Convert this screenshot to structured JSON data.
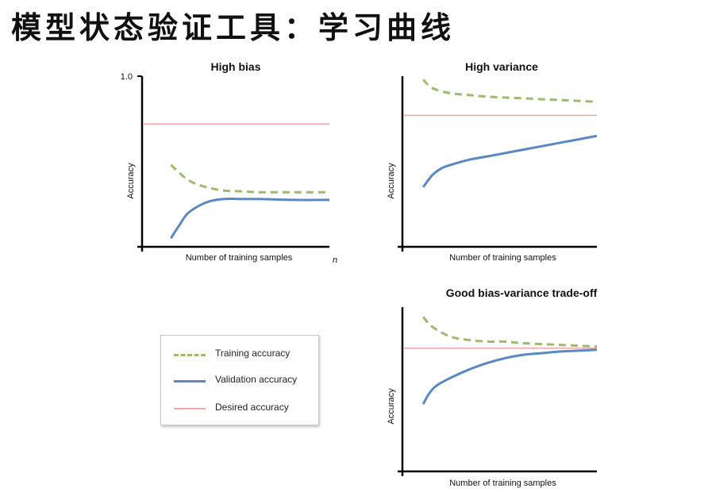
{
  "page": {
    "title": "模型状态验证工具：学习曲线"
  },
  "legend": {
    "items": [
      {
        "label": "Training accuracy",
        "style": "dashed",
        "color": "#9dbb6c"
      },
      {
        "label": "Validation accuracy",
        "style": "solid",
        "color": "#5b88c2"
      },
      {
        "label": "Desired accuracy",
        "style": "solid",
        "color": "#f1a7a7"
      }
    ]
  },
  "chart_data": [
    {
      "type": "line",
      "title": "High bias",
      "xlabel": "Number of training samples",
      "ylabel": "Accuracy",
      "y_tick_label": "1.0",
      "x_end_label": "n",
      "ylim": [
        0,
        1.0
      ],
      "xlim": [
        0,
        1
      ],
      "grid": false,
      "series": [
        {
          "name": "Desired accuracy",
          "style": "solid",
          "color": "#f1a7a7",
          "x": [
            0.0,
            1.0
          ],
          "values": [
            0.72,
            0.72
          ]
        },
        {
          "name": "Training accuracy",
          "style": "dashed",
          "color": "#9dbb6c",
          "x": [
            0.1,
            0.2,
            0.3,
            0.4,
            0.5,
            0.6,
            0.8,
            1.0
          ],
          "values": [
            0.48,
            0.39,
            0.35,
            0.33,
            0.325,
            0.32,
            0.32,
            0.32
          ]
        },
        {
          "name": "Validation accuracy",
          "style": "solid",
          "color": "#5b88c2",
          "x": [
            0.1,
            0.15,
            0.2,
            0.3,
            0.4,
            0.5,
            0.6,
            0.8,
            1.0
          ],
          "values": [
            0.05,
            0.13,
            0.2,
            0.26,
            0.28,
            0.28,
            0.28,
            0.275,
            0.275
          ]
        }
      ]
    },
    {
      "type": "line",
      "title": "High variance",
      "xlabel": "Number of training samples",
      "ylabel": "Accuracy",
      "ylim": [
        0,
        1.0
      ],
      "xlim": [
        0,
        1
      ],
      "grid": false,
      "series": [
        {
          "name": "Desired accuracy",
          "style": "solid",
          "color": "#f1a7a7",
          "x": [
            0.0,
            1.0
          ],
          "values": [
            0.77,
            0.77
          ]
        },
        {
          "name": "Training accuracy",
          "style": "dashed",
          "color": "#9dbb6c",
          "x": [
            0.05,
            0.1,
            0.2,
            0.3,
            0.4,
            0.6,
            0.8,
            1.0
          ],
          "values": [
            0.98,
            0.93,
            0.9,
            0.89,
            0.88,
            0.87,
            0.86,
            0.85
          ]
        },
        {
          "name": "Validation accuracy",
          "style": "solid",
          "color": "#5b88c2",
          "x": [
            0.05,
            0.1,
            0.15,
            0.2,
            0.3,
            0.4,
            0.5,
            0.6,
            0.7,
            0.8,
            0.9,
            1.0
          ],
          "values": [
            0.35,
            0.42,
            0.46,
            0.48,
            0.51,
            0.53,
            0.55,
            0.57,
            0.59,
            0.61,
            0.63,
            0.65
          ]
        }
      ]
    },
    {
      "type": "line",
      "title": "Good bias-variance trade-off",
      "xlabel": "Number of training samples",
      "ylabel": "Accuracy",
      "ylim": [
        0,
        1.0
      ],
      "xlim": [
        0,
        1
      ],
      "grid": false,
      "series": [
        {
          "name": "Desired accuracy",
          "style": "solid",
          "color": "#f1a7a7",
          "x": [
            0.0,
            1.0
          ],
          "values": [
            0.75,
            0.75
          ]
        },
        {
          "name": "Training accuracy",
          "style": "dashed",
          "color": "#9dbb6c",
          "x": [
            0.05,
            0.1,
            0.2,
            0.3,
            0.4,
            0.5,
            0.6,
            0.8,
            1.0
          ],
          "values": [
            0.94,
            0.88,
            0.82,
            0.8,
            0.79,
            0.79,
            0.78,
            0.77,
            0.76
          ]
        },
        {
          "name": "Validation accuracy",
          "style": "solid",
          "color": "#5b88c2",
          "x": [
            0.05,
            0.08,
            0.12,
            0.2,
            0.3,
            0.4,
            0.5,
            0.6,
            0.7,
            0.8,
            0.9,
            1.0
          ],
          "values": [
            0.41,
            0.47,
            0.52,
            0.57,
            0.62,
            0.66,
            0.69,
            0.71,
            0.72,
            0.73,
            0.735,
            0.74
          ]
        }
      ]
    }
  ]
}
